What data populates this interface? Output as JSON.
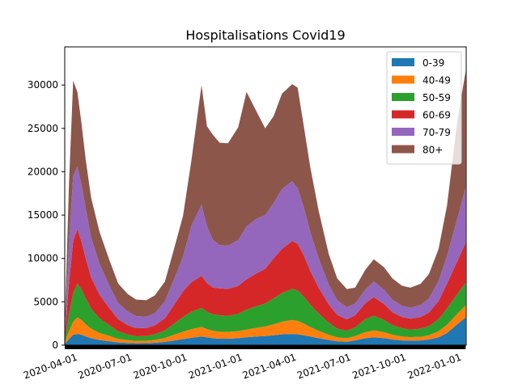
{
  "chart_data": {
    "type": "area",
    "stacked": true,
    "title": "Hospitalisations Covid19",
    "xlabel": "",
    "ylabel": "",
    "x_range": [
      "2020-03-18",
      "2022-01-16"
    ],
    "ylim": [
      0,
      34400
    ],
    "y_ticks": [
      0,
      5000,
      10000,
      15000,
      20000,
      25000,
      30000
    ],
    "x_ticks": [
      "2020-04-01",
      "2020-07-01",
      "2020-10-01",
      "2021-01-01",
      "2021-04-01",
      "2021-07-01",
      "2021-10-01",
      "2022-01-01"
    ],
    "x_tick_rotation": 20,
    "grid": false,
    "legend_position": "top-right",
    "x": [
      "2020-03-18",
      "2020-03-25",
      "2020-04-01",
      "2020-04-08",
      "2020-04-15",
      "2020-04-22",
      "2020-05-01",
      "2020-05-15",
      "2020-06-01",
      "2020-06-15",
      "2020-07-01",
      "2020-07-15",
      "2020-08-01",
      "2020-08-15",
      "2020-09-01",
      "2020-09-15",
      "2020-10-01",
      "2020-10-15",
      "2020-11-01",
      "2020-11-10",
      "2020-11-20",
      "2020-12-01",
      "2020-12-15",
      "2021-01-01",
      "2021-01-15",
      "2021-02-01",
      "2021-02-15",
      "2021-03-01",
      "2021-03-15",
      "2021-04-01",
      "2021-04-10",
      "2021-04-20",
      "2021-05-01",
      "2021-05-15",
      "2021-06-01",
      "2021-06-15",
      "2021-07-01",
      "2021-07-15",
      "2021-08-01",
      "2021-08-15",
      "2021-09-01",
      "2021-09-15",
      "2021-10-01",
      "2021-10-15",
      "2021-11-01",
      "2021-11-15",
      "2021-12-01",
      "2021-12-15",
      "2022-01-01",
      "2022-01-15"
    ],
    "series": [
      {
        "name": "0-39",
        "color": "#1f77b4",
        "values": [
          150,
          700,
          1200,
          1300,
          1200,
          1000,
          800,
          600,
          450,
          320,
          260,
          220,
          230,
          280,
          380,
          520,
          700,
          850,
          1000,
          900,
          800,
          750,
          750,
          800,
          900,
          1000,
          1050,
          1150,
          1250,
          1300,
          1250,
          1150,
          1000,
          800,
          600,
          450,
          400,
          550,
          800,
          900,
          800,
          650,
          550,
          520,
          550,
          650,
          900,
          1400,
          2400,
          3200
        ]
      },
      {
        "name": "40-49",
        "color": "#ff7f0e",
        "values": [
          150,
          900,
          1500,
          1900,
          1700,
          1400,
          1100,
          800,
          600,
          420,
          320,
          270,
          280,
          330,
          450,
          650,
          850,
          1000,
          1100,
          950,
          850,
          800,
          780,
          820,
          900,
          1000,
          1100,
          1250,
          1450,
          1600,
          1550,
          1350,
          1100,
          850,
          600,
          450,
          400,
          500,
          700,
          800,
          700,
          550,
          450,
          400,
          420,
          500,
          700,
          950,
          1200,
          1400
        ]
      },
      {
        "name": "50-59",
        "color": "#2ca02c",
        "values": [
          250,
          2000,
          3300,
          3900,
          3500,
          3000,
          2300,
          1700,
          1200,
          850,
          640,
          540,
          540,
          640,
          870,
          1250,
          1700,
          2000,
          2200,
          2000,
          1900,
          1900,
          1850,
          2000,
          2300,
          2500,
          2650,
          3000,
          3300,
          3600,
          3500,
          3100,
          2600,
          2000,
          1400,
          1000,
          870,
          1000,
          1500,
          1700,
          1400,
          1100,
          950,
          880,
          930,
          1050,
          1400,
          1900,
          2300,
          2600
        ]
      },
      {
        "name": "60-69",
        "color": "#d62728",
        "values": [
          400,
          3500,
          6000,
          6300,
          5500,
          4600,
          3600,
          2700,
          1950,
          1400,
          1080,
          930,
          930,
          1030,
          1400,
          2100,
          2950,
          3400,
          3700,
          3300,
          3100,
          3100,
          3100,
          3200,
          3500,
          3800,
          4000,
          4600,
          5100,
          5500,
          5400,
          4800,
          3900,
          3000,
          2100,
          1600,
          1300,
          1400,
          1850,
          2150,
          1850,
          1500,
          1300,
          1250,
          1350,
          1550,
          2100,
          2850,
          3750,
          4600
        ]
      },
      {
        "name": "70-79",
        "color": "#9467bd",
        "values": [
          500,
          4600,
          7500,
          7200,
          6600,
          5800,
          4600,
          3600,
          2600,
          1880,
          1600,
          1400,
          1300,
          1400,
          1950,
          2900,
          4000,
          6500,
          8200,
          6600,
          5500,
          5000,
          5000,
          5300,
          6100,
          6300,
          6200,
          6400,
          6900,
          6900,
          6400,
          5600,
          4500,
          3400,
          2300,
          1700,
          1400,
          1350,
          1550,
          1800,
          1650,
          1450,
          1300,
          1280,
          1380,
          1650,
          2300,
          3200,
          4900,
          6400
        ]
      },
      {
        "name": "80+",
        "color": "#8c564b",
        "values": [
          800,
          6800,
          11000,
          8600,
          7000,
          5600,
          4600,
          3650,
          2900,
          2230,
          2000,
          1900,
          1900,
          2050,
          2300,
          3400,
          4700,
          7500,
          13800,
          11500,
          12100,
          11800,
          11800,
          13000,
          15500,
          12300,
          10000,
          10000,
          11000,
          11200,
          11600,
          9400,
          7500,
          5500,
          3500,
          2500,
          2100,
          1850,
          2300,
          2550,
          2600,
          2450,
          2300,
          2300,
          2450,
          2800,
          3700,
          5800,
          11200,
          13400
        ]
      }
    ]
  }
}
